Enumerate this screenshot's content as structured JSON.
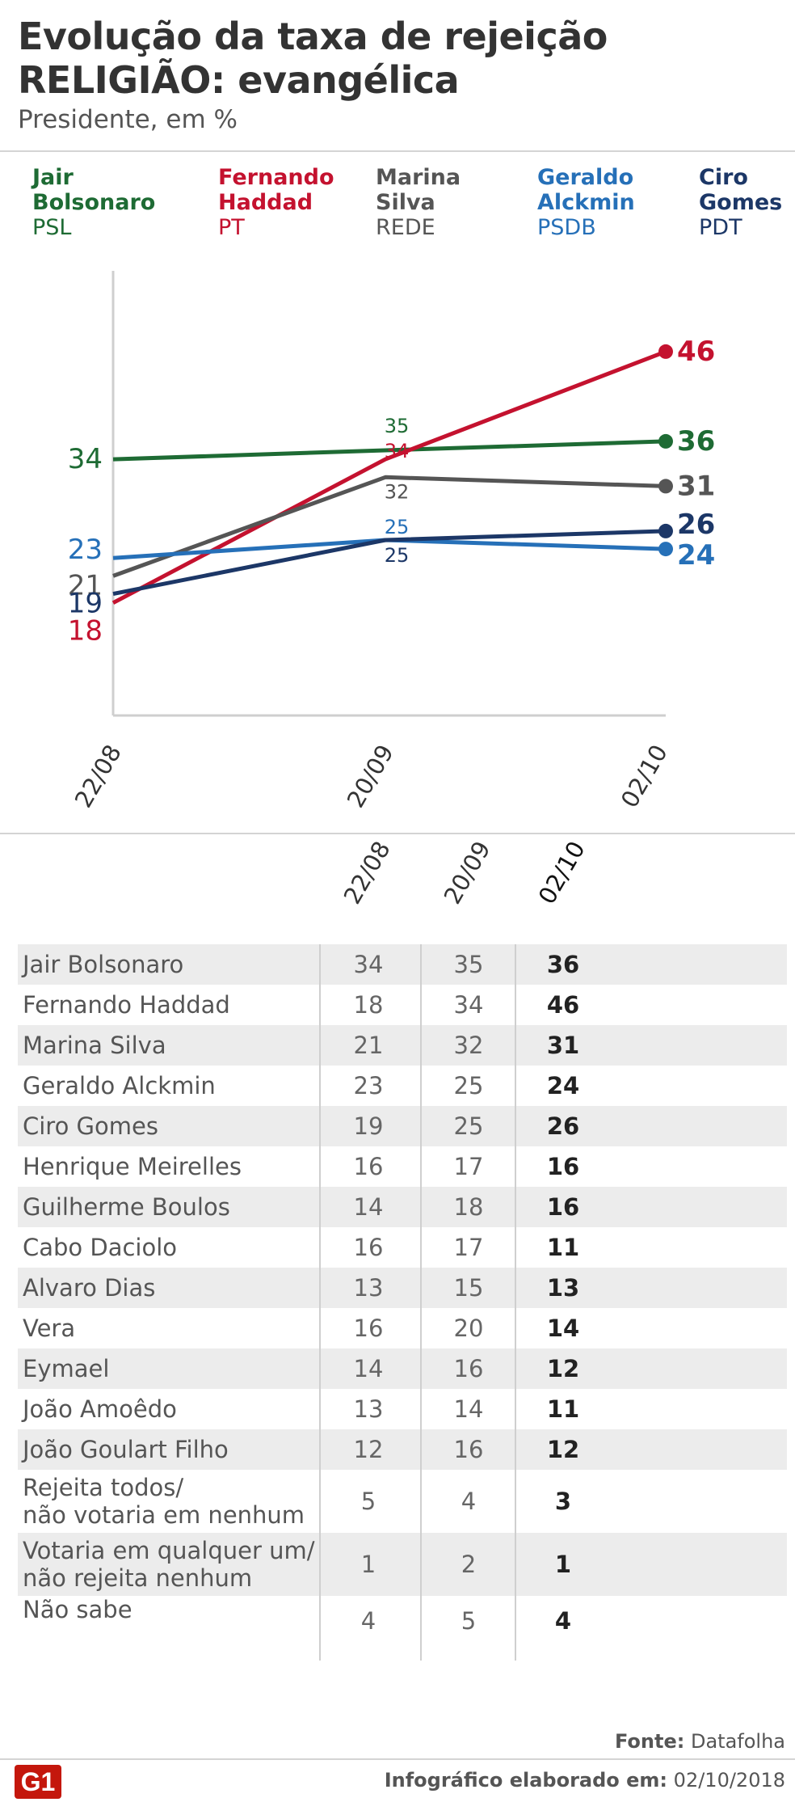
{
  "header": {
    "title_line1": "Evolução da taxa de rejeição",
    "title_line2": "RELIGIÃO: evangélica",
    "subtitle": "Presidente, em %"
  },
  "legend": [
    {
      "name": "Jair\nBolsonaro",
      "party": "PSL",
      "color": "#1e6b34"
    },
    {
      "name": "Fernando\nHaddad",
      "party": "PT",
      "color": "#c4122f"
    },
    {
      "name": "Marina\nSilva",
      "party": "REDE",
      "color": "#555555"
    },
    {
      "name": "Geraldo\nAlckmin",
      "party": "PSDB",
      "color": "#2670b8"
    },
    {
      "name": "Ciro\nGomes",
      "party": "PDT",
      "color": "#1c3767"
    }
  ],
  "chart_data": {
    "type": "line",
    "x": [
      "22/08",
      "20/09",
      "02/10"
    ],
    "series": [
      {
        "name": "Jair Bolsonaro",
        "values": [
          34,
          35,
          36
        ],
        "color": "#1e6b34"
      },
      {
        "name": "Fernando Haddad",
        "values": [
          18,
          34,
          46
        ],
        "color": "#c4122f"
      },
      {
        "name": "Marina Silva",
        "values": [
          21,
          32,
          31
        ],
        "color": "#555555"
      },
      {
        "name": "Geraldo Alckmin",
        "values": [
          23,
          25,
          24
        ],
        "color": "#2670b8"
      },
      {
        "name": "Ciro Gomes",
        "values": [
          19,
          25,
          26
        ],
        "color": "#1c3767"
      }
    ]
  },
  "table": {
    "headers": [
      "22/08",
      "20/09",
      "02/10"
    ],
    "rows": [
      {
        "name": "Jair Bolsonaro",
        "v": [
          "34",
          "35",
          "36"
        ]
      },
      {
        "name": "Fernando Haddad",
        "v": [
          "18",
          "34",
          "46"
        ]
      },
      {
        "name": "Marina Silva",
        "v": [
          "21",
          "32",
          "31"
        ]
      },
      {
        "name": "Geraldo Alckmin",
        "v": [
          "23",
          "25",
          "24"
        ]
      },
      {
        "name": "Ciro Gomes",
        "v": [
          "19",
          "25",
          "26"
        ]
      },
      {
        "name": "Henrique Meirelles",
        "v": [
          "16",
          "17",
          "16"
        ]
      },
      {
        "name": "Guilherme Boulos",
        "v": [
          "14",
          "18",
          "16"
        ]
      },
      {
        "name": "Cabo Daciolo",
        "v": [
          "16",
          "17",
          "11"
        ]
      },
      {
        "name": "Alvaro Dias",
        "v": [
          "13",
          "15",
          "13"
        ]
      },
      {
        "name": "Vera",
        "v": [
          "16",
          "20",
          "14"
        ]
      },
      {
        "name": "Eymael",
        "v": [
          "14",
          "16",
          "12"
        ]
      },
      {
        "name": "João Amoêdo",
        "v": [
          "13",
          "14",
          "11"
        ]
      },
      {
        "name": "João Goulart Filho",
        "v": [
          "12",
          "16",
          "12"
        ]
      },
      {
        "name": "Rejeita todos/\nnão votaria em nenhum",
        "v": [
          "5",
          "4",
          "3"
        ]
      },
      {
        "name": "Votaria em qualquer um/\nnão rejeita nenhum",
        "v": [
          "1",
          "2",
          "1"
        ]
      },
      {
        "name": "Não sabe",
        "v": [
          "4",
          "5",
          "4"
        ]
      }
    ]
  },
  "footer": {
    "source_label": "Fonte:",
    "source": "Datafolha",
    "note_label": "Infográfico elaborado em:",
    "note_date": "02/10/2018",
    "logo": "G1"
  }
}
